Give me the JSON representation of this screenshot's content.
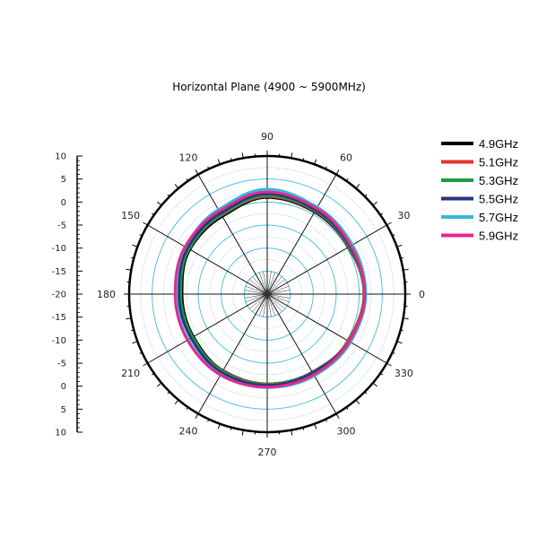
{
  "chart_data": {
    "type": "polar-line",
    "title": "Horizontal Plane (4900 ~ 5900MHz)",
    "radial_axis": {
      "tick_labels": [
        "10",
        "5",
        "0",
        "-5",
        "-10",
        "-15",
        "-20",
        "-15",
        "-10",
        "-5",
        "0",
        "5",
        "10"
      ],
      "range": [
        -20,
        10
      ],
      "gridline_values": [
        -15,
        -10,
        -5,
        0,
        5
      ],
      "grid": true
    },
    "angular_axis": {
      "unit": "degrees",
      "tick_labels": [
        "0",
        "30",
        "60",
        "90",
        "120",
        "150",
        "180",
        "210",
        "240",
        "270",
        "300",
        "330"
      ],
      "step": 30,
      "grid": true
    },
    "legend_position": "top-right",
    "series": [
      {
        "name": "4.9GHz",
        "color": "#000000",
        "angles": [
          0,
          30,
          60,
          90,
          120,
          150,
          180,
          210,
          240,
          270,
          300,
          330
        ],
        "values": [
          1.2,
          0.4,
          0.6,
          1.0,
          -0.5,
          -0.6,
          -1.5,
          -1.5,
          -0.8,
          -0.5,
          -0.4,
          0.4
        ]
      },
      {
        "name": "5.1GHz",
        "color": "#e8312c",
        "angles": [
          0,
          30,
          60,
          90,
          120,
          150,
          180,
          210,
          240,
          270,
          300,
          330
        ],
        "values": [
          1.0,
          0.5,
          0.8,
          1.2,
          -0.2,
          -0.3,
          -1.0,
          -1.2,
          -0.7,
          -0.5,
          -0.3,
          0.3
        ]
      },
      {
        "name": "5.3GHz",
        "color": "#1f9a48",
        "angles": [
          0,
          30,
          60,
          90,
          120,
          150,
          180,
          210,
          240,
          270,
          300,
          330
        ],
        "values": [
          1.1,
          0.6,
          0.9,
          1.4,
          -0.1,
          -0.4,
          -1.2,
          -1.3,
          -0.6,
          -0.4,
          -0.3,
          0.5
        ]
      },
      {
        "name": "5.5GHz",
        "color": "#25357f",
        "angles": [
          0,
          30,
          60,
          90,
          120,
          150,
          180,
          210,
          240,
          270,
          300,
          330
        ],
        "values": [
          1.3,
          0.8,
          1.1,
          1.8,
          0.3,
          0.0,
          -0.8,
          -0.9,
          -0.3,
          -0.2,
          -0.2,
          0.6
        ]
      },
      {
        "name": "5.7GHz",
        "color": "#36b8d9",
        "angles": [
          0,
          30,
          60,
          90,
          120,
          150,
          180,
          210,
          240,
          270,
          300,
          330
        ],
        "values": [
          1.4,
          1.4,
          1.8,
          2.8,
          1.2,
          0.5,
          -0.3,
          -0.2,
          0.2,
          0.3,
          0.5,
          0.9
        ]
      },
      {
        "name": "5.9GHz",
        "color": "#e5288f",
        "angles": [
          0,
          30,
          60,
          90,
          120,
          150,
          180,
          210,
          240,
          270,
          300,
          330
        ],
        "values": [
          1.2,
          1.0,
          1.5,
          2.2,
          0.8,
          0.6,
          0.0,
          0.0,
          0.3,
          0.2,
          0.2,
          0.6
        ]
      }
    ]
  }
}
